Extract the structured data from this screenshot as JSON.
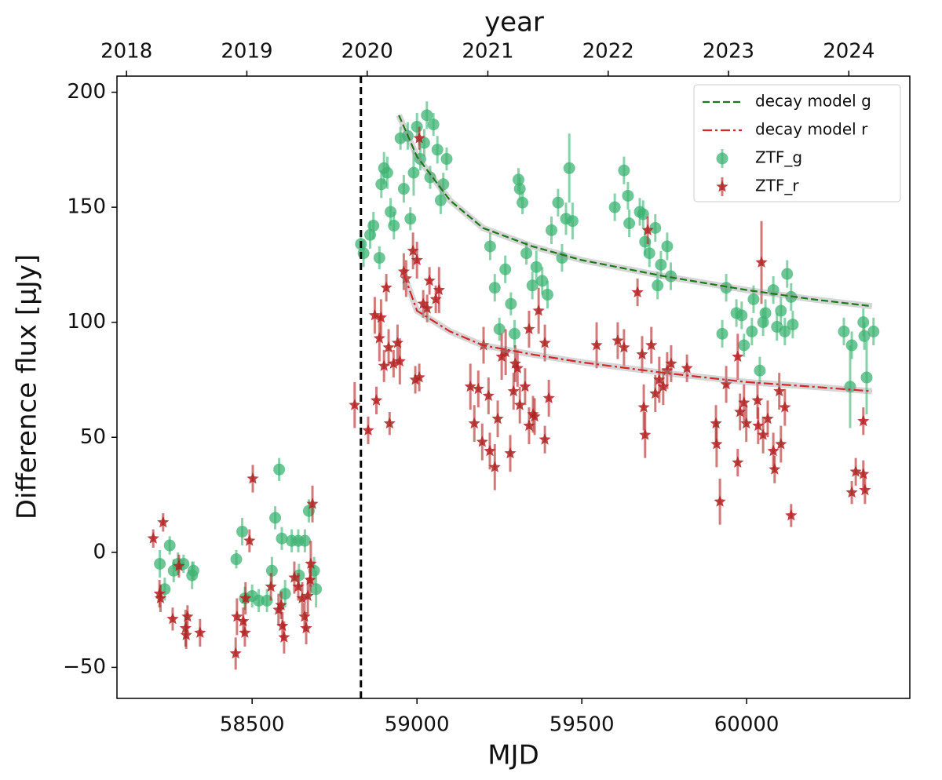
{
  "chart_data": {
    "type": "scatter",
    "xlabel": "MJD",
    "ylabel": "Difference flux [μJy]",
    "x2label": "year",
    "xlim": [
      58090,
      60495
    ],
    "ylim": [
      -63.5,
      207
    ],
    "xticks": [
      58500,
      59000,
      59500,
      60000
    ],
    "yticks": [
      {
        "value": -50,
        "label": "−50"
      },
      0,
      50,
      100,
      150,
      200
    ],
    "x2ticks": [
      {
        "value": 58119,
        "label": "2018"
      },
      {
        "value": 58484,
        "label": "2019"
      },
      {
        "value": 58849,
        "label": "2020"
      },
      {
        "value": 59215,
        "label": "2021"
      },
      {
        "value": 59580,
        "label": "2022"
      },
      {
        "value": 59945,
        "label": "2023"
      },
      {
        "value": 60310,
        "label": "2024"
      }
    ],
    "reference_line_x": 58830,
    "legend": "upper right",
    "series": [
      {
        "name": "decay model g",
        "type": "line",
        "style": "dashed",
        "color": "#1a7a1a",
        "x": [
          58945,
          59000,
          59100,
          59200,
          59350,
          59500,
          59750,
          60000,
          60200,
          60380
        ],
        "values": [
          190,
          172,
          153,
          141,
          133,
          127,
          120,
          114,
          110,
          107
        ]
      },
      {
        "name": "decay model r",
        "type": "line",
        "style": "dashdot",
        "color": "#d62728",
        "x": [
          58960,
          59000,
          59100,
          59200,
          59350,
          59500,
          59750,
          60000,
          60200,
          60380
        ],
        "values": [
          121,
          105,
          96,
          90,
          86,
          82.6,
          78,
          74,
          72,
          70
        ]
      },
      {
        "name": "ZTF_g",
        "type": "scatter",
        "style": "circle",
        "color": "#3cb371",
        "x": [
          58220,
          58235,
          58250,
          58262,
          58275,
          58292,
          58318,
          58322,
          58452,
          58470,
          58478,
          58500,
          58520,
          58545,
          58560,
          58570,
          58582,
          58590,
          58600,
          58620,
          58640,
          58642,
          58660,
          58672,
          58688,
          58694,
          58830,
          58838,
          58858,
          58868,
          58886,
          58892,
          58900,
          58910,
          58920,
          58930,
          58950,
          58960,
          58972,
          58980,
          58990,
          59000,
          59010,
          59022,
          59030,
          59040,
          59050,
          59062,
          59072,
          59080,
          59090,
          59222,
          59236,
          59250,
          59268,
          59285,
          59296,
          59308,
          59312,
          59320,
          59332,
          59350,
          59362,
          59380,
          59396,
          59408,
          59428,
          59440,
          59452,
          59462,
          59472,
          59600,
          59628,
          59640,
          59644,
          59676,
          59686,
          59692,
          59705,
          59723,
          59730,
          59740,
          59759,
          59770,
          59938,
          59926,
          59969,
          59985,
          59992,
          60021,
          60016,
          60040,
          60050,
          60057,
          60081,
          60092,
          60104,
          60123,
          60135,
          60140,
          60116,
          60295,
          60319,
          60314,
          60354,
          60357,
          60364,
          60385
        ],
        "values": [
          -5,
          -16,
          3,
          -8,
          -5,
          -5,
          -10,
          -8,
          -3,
          9,
          -20,
          -19,
          -21,
          -21,
          -8,
          15,
          36,
          6,
          -18,
          5,
          5,
          -10,
          5,
          18,
          -8,
          -16,
          134,
          130,
          138,
          142,
          128,
          160,
          167,
          165,
          148,
          142,
          180,
          158,
          181,
          145,
          165,
          185,
          171,
          178,
          190,
          163,
          186,
          175,
          153,
          160,
          171,
          133,
          115,
          97,
          123,
          108,
          95,
          162,
          158,
          152,
          130,
          116,
          124,
          118,
          112,
          140,
          152,
          128,
          145,
          167,
          144,
          150,
          166,
          155,
          143,
          148,
          147,
          135,
          130,
          141,
          116,
          125,
          133,
          120,
          115,
          95,
          104,
          103,
          90,
          110,
          96,
          79,
          100,
          104,
          114,
          98,
          105,
          121,
          111,
          99,
          96,
          96,
          90,
          72,
          100,
          94,
          76,
          96
        ],
        "errors": [
          6,
          5,
          4,
          5,
          5,
          4,
          6,
          4,
          4,
          6,
          5,
          5,
          5,
          5,
          6,
          5,
          5,
          5,
          6,
          5,
          5,
          5,
          5,
          5,
          6,
          8,
          6,
          6,
          6,
          6,
          5,
          6,
          7,
          7,
          6,
          6,
          5,
          6,
          6,
          5,
          10,
          6,
          5,
          6,
          6,
          5,
          5,
          6,
          6,
          5,
          5,
          6,
          6,
          5,
          6,
          5,
          6,
          5,
          5,
          5,
          5,
          6,
          7,
          6,
          6,
          6,
          6,
          6,
          7,
          15,
          8,
          6,
          6,
          6,
          6,
          6,
          6,
          6,
          6,
          6,
          6,
          6,
          6,
          6,
          6,
          6,
          6,
          6,
          5,
          6,
          6,
          6,
          6,
          6,
          6,
          6,
          6,
          6,
          6,
          6,
          6,
          6,
          6,
          18,
          6,
          6,
          16,
          6
        ]
      },
      {
        "name": "ZTF_r",
        "type": "scatter",
        "style": "star",
        "color": "#b22222",
        "x": [
          58200,
          58219,
          58222,
          58230,
          58259,
          58278,
          58300,
          58304,
          58298,
          58342,
          58450,
          58454,
          58473,
          58480,
          58478,
          58502,
          58492,
          58557,
          58580,
          58588,
          58592,
          58597,
          58628,
          58640,
          58652,
          58659,
          58664,
          58669,
          58676,
          58678,
          58683,
          58811,
          58852,
          58872,
          58891,
          58877,
          58886,
          58900,
          58914,
          58907,
          58917,
          58929,
          58941,
          58948,
          58960,
          58967,
          58988,
          59000,
          58995,
          59007,
          59007,
          59019,
          59031,
          59038,
          59057,
          59067,
          59162,
          59174,
          59186,
          59198,
          59202,
          59217,
          59221,
          59236,
          59245,
          59257,
          59269,
          59283,
          59293,
          59298,
          59312,
          59328,
          59340,
          59352,
          59340,
          59369,
          59388,
          59400,
          59388,
          59305,
          59357,
          59545,
          59609,
          59628,
          59669,
          59683,
          59688,
          59692,
          59700,
          59711,
          59735,
          59747,
          59759,
          59771,
          59819,
          59723,
          59907,
          59909,
          59919,
          59938,
          59973,
          59980,
          59973,
          59992,
          59999,
          60045,
          60033,
          60035,
          60050,
          60081,
          60064,
          60085,
          60104,
          60116,
          60135,
          60099,
          60319,
          60331,
          60354,
          60359,
          60354
        ],
        "values": [
          6,
          -18,
          -20,
          13,
          -29,
          -6,
          -36,
          -28,
          -33,
          -35,
          -44,
          -28,
          -30,
          -20,
          -35,
          32,
          5,
          -15,
          -25,
          -23,
          -32,
          -37,
          -11,
          -15,
          -20,
          -28,
          -33,
          -19,
          -12,
          -5,
          21,
          64,
          53,
          103,
          102,
          66,
          93,
          81,
          89,
          115,
          56,
          82,
          91,
          83,
          122,
          119,
          131,
          127,
          75,
          76,
          180,
          108,
          106,
          118,
          110,
          114,
          72,
          56,
          71,
          48,
          90,
          68,
          44,
          37,
          58,
          85,
          87,
          43,
          70,
          82,
          64,
          72,
          55,
          60,
          97,
          105,
          91,
          67,
          49,
          80,
          59,
          90,
          92,
          89,
          113,
          86,
          63,
          51,
          140,
          90,
          75,
          72,
          79,
          82,
          80,
          69,
          56,
          47,
          22,
          73,
          85,
          61,
          39,
          65,
          56,
          126,
          66,
          55,
          51,
          44,
          58,
          36,
          47,
          63,
          16,
          70,
          26,
          35,
          34,
          27,
          57
        ],
        "errors": [
          4,
          6,
          6,
          4,
          5,
          5,
          6,
          5,
          8,
          6,
          7,
          8,
          6,
          7,
          6,
          6,
          5,
          6,
          7,
          6,
          6,
          7,
          7,
          6,
          7,
          6,
          7,
          8,
          6,
          10,
          8,
          10,
          6,
          8,
          8,
          6,
          10,
          7,
          8,
          6,
          5,
          6,
          8,
          10,
          8,
          8,
          8,
          8,
          6,
          6,
          5,
          6,
          6,
          6,
          6,
          10,
          10,
          8,
          8,
          8,
          8,
          8,
          8,
          10,
          8,
          10,
          10,
          8,
          8,
          8,
          8,
          8,
          8,
          8,
          8,
          10,
          8,
          8,
          6,
          8,
          8,
          10,
          8,
          8,
          6,
          8,
          10,
          10,
          6,
          8,
          10,
          8,
          8,
          8,
          6,
          8,
          8,
          10,
          10,
          8,
          10,
          8,
          6,
          8,
          8,
          18,
          8,
          8,
          8,
          8,
          8,
          6,
          8,
          8,
          5,
          8,
          5,
          6,
          6,
          6,
          6
        ]
      }
    ]
  }
}
